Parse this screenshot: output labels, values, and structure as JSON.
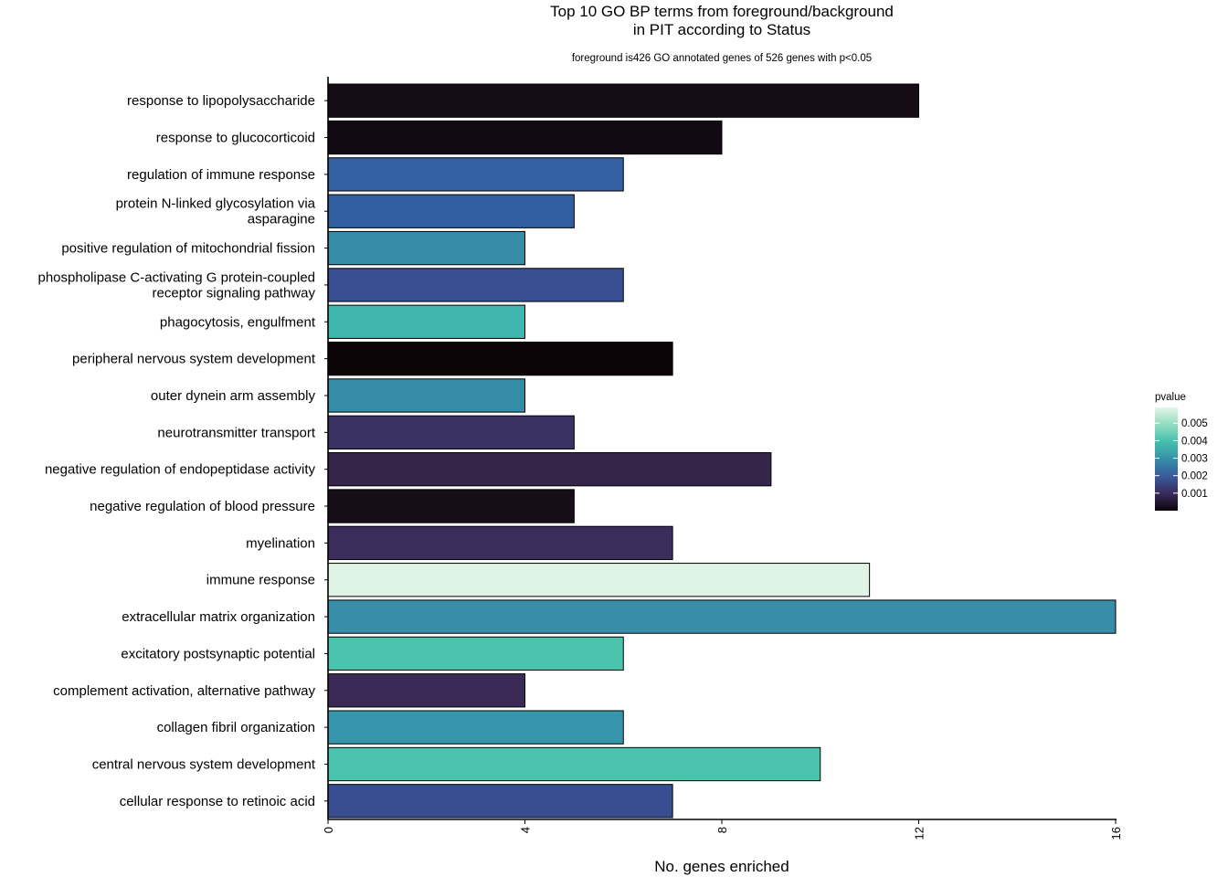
{
  "chart_data": {
    "type": "bar",
    "orientation": "horizontal",
    "title_lines": [
      "Top 10 GO BP terms from foreground/background",
      "in PIT according to Status"
    ],
    "subtitle": "foreground is426 GO annotated genes of 526 genes with p<0.05",
    "xlabel": "No. genes enriched",
    "ylabel": "",
    "xlim": [
      0,
      16
    ],
    "x_ticks": [
      {
        "value": 0,
        "label": "0"
      },
      {
        "value": 4,
        "label": "4"
      },
      {
        "value": 8,
        "label": "8"
      },
      {
        "value": 12,
        "label": "12"
      },
      {
        "value": 16,
        "label": "16"
      }
    ],
    "grid": false,
    "legend": {
      "title": "pvalue",
      "placement": "right",
      "min": 0,
      "max": 0.0059,
      "ticks": [
        {
          "value": 0.001,
          "label": "0.001"
        },
        {
          "value": 0.002,
          "label": "0.002"
        },
        {
          "value": 0.003,
          "label": "0.003"
        },
        {
          "value": 0.004,
          "label": "0.004"
        },
        {
          "value": 0.005,
          "label": "0.005"
        }
      ],
      "gradient_colors": [
        "#0a0509",
        "#3a2b5e",
        "#3a5a9c",
        "#3690a8",
        "#44bfad",
        "#92dcc0",
        "#e3f5e9"
      ]
    },
    "bars": [
      {
        "term_lines": [
          "response to lipopolysaccharide"
        ],
        "value": 12,
        "pvalue": 0.0002,
        "color": "#150c16"
      },
      {
        "term_lines": [
          "response to glucocorticoid"
        ],
        "value": 8,
        "pvalue": 0.0001,
        "color": "#120a12"
      },
      {
        "term_lines": [
          "regulation of immune response"
        ],
        "value": 6,
        "pvalue": 0.0022,
        "color": "#3460a1"
      },
      {
        "term_lines": [
          "protein N-linked glycosylation via",
          "asparagine"
        ],
        "value": 5,
        "pvalue": 0.0022,
        "color": "#335e9f"
      },
      {
        "term_lines": [
          "positive regulation of mitochondrial fission"
        ],
        "value": 4,
        "pvalue": 0.0033,
        "color": "#378ca6"
      },
      {
        "term_lines": [
          "phospholipase C-activating G protein-coupled",
          "receptor signaling pathway"
        ],
        "value": 6,
        "pvalue": 0.0019,
        "color": "#394f94"
      },
      {
        "term_lines": [
          "phagocytosis, engulfment"
        ],
        "value": 4,
        "pvalue": 0.0042,
        "color": "#3fb6ae"
      },
      {
        "term_lines": [
          "peripheral nervous system development"
        ],
        "value": 7,
        "pvalue": 0.0001,
        "color": "#0c0508"
      },
      {
        "term_lines": [
          "outer dynein arm assembly"
        ],
        "value": 4,
        "pvalue": 0.0033,
        "color": "#348ca7"
      },
      {
        "term_lines": [
          "neurotransmitter transport"
        ],
        "value": 5,
        "pvalue": 0.0013,
        "color": "#3a3263"
      },
      {
        "term_lines": [
          "negative regulation of endopeptidase activity"
        ],
        "value": 9,
        "pvalue": 0.0011,
        "color": "#352548"
      },
      {
        "term_lines": [
          "negative regulation of blood pressure"
        ],
        "value": 5,
        "pvalue": 0.0001,
        "color": "#160d18"
      },
      {
        "term_lines": [
          "myelination"
        ],
        "value": 7,
        "pvalue": 0.0013,
        "color": "#3b2c5c"
      },
      {
        "term_lines": [
          "immune response"
        ],
        "value": 11,
        "pvalue": 0.0058,
        "color": "#dff3e6"
      },
      {
        "term_lines": [
          "extracellular matrix organization"
        ],
        "value": 16,
        "pvalue": 0.0033,
        "color": "#388ea9"
      },
      {
        "term_lines": [
          "excitatory postsynaptic potential"
        ],
        "value": 6,
        "pvalue": 0.0044,
        "color": "#4ac4ac"
      },
      {
        "term_lines": [
          "complement activation, alternative pathway"
        ],
        "value": 4,
        "pvalue": 0.0012,
        "color": "#3b2a55"
      },
      {
        "term_lines": [
          "collagen fibril organization"
        ],
        "value": 6,
        "pvalue": 0.0033,
        "color": "#3795ab"
      },
      {
        "term_lines": [
          "central nervous system development"
        ],
        "value": 10,
        "pvalue": 0.0044,
        "color": "#49c3ac"
      },
      {
        "term_lines": [
          "cellular response to retinoic acid"
        ],
        "value": 7,
        "pvalue": 0.0019,
        "color": "#384e91"
      }
    ]
  }
}
